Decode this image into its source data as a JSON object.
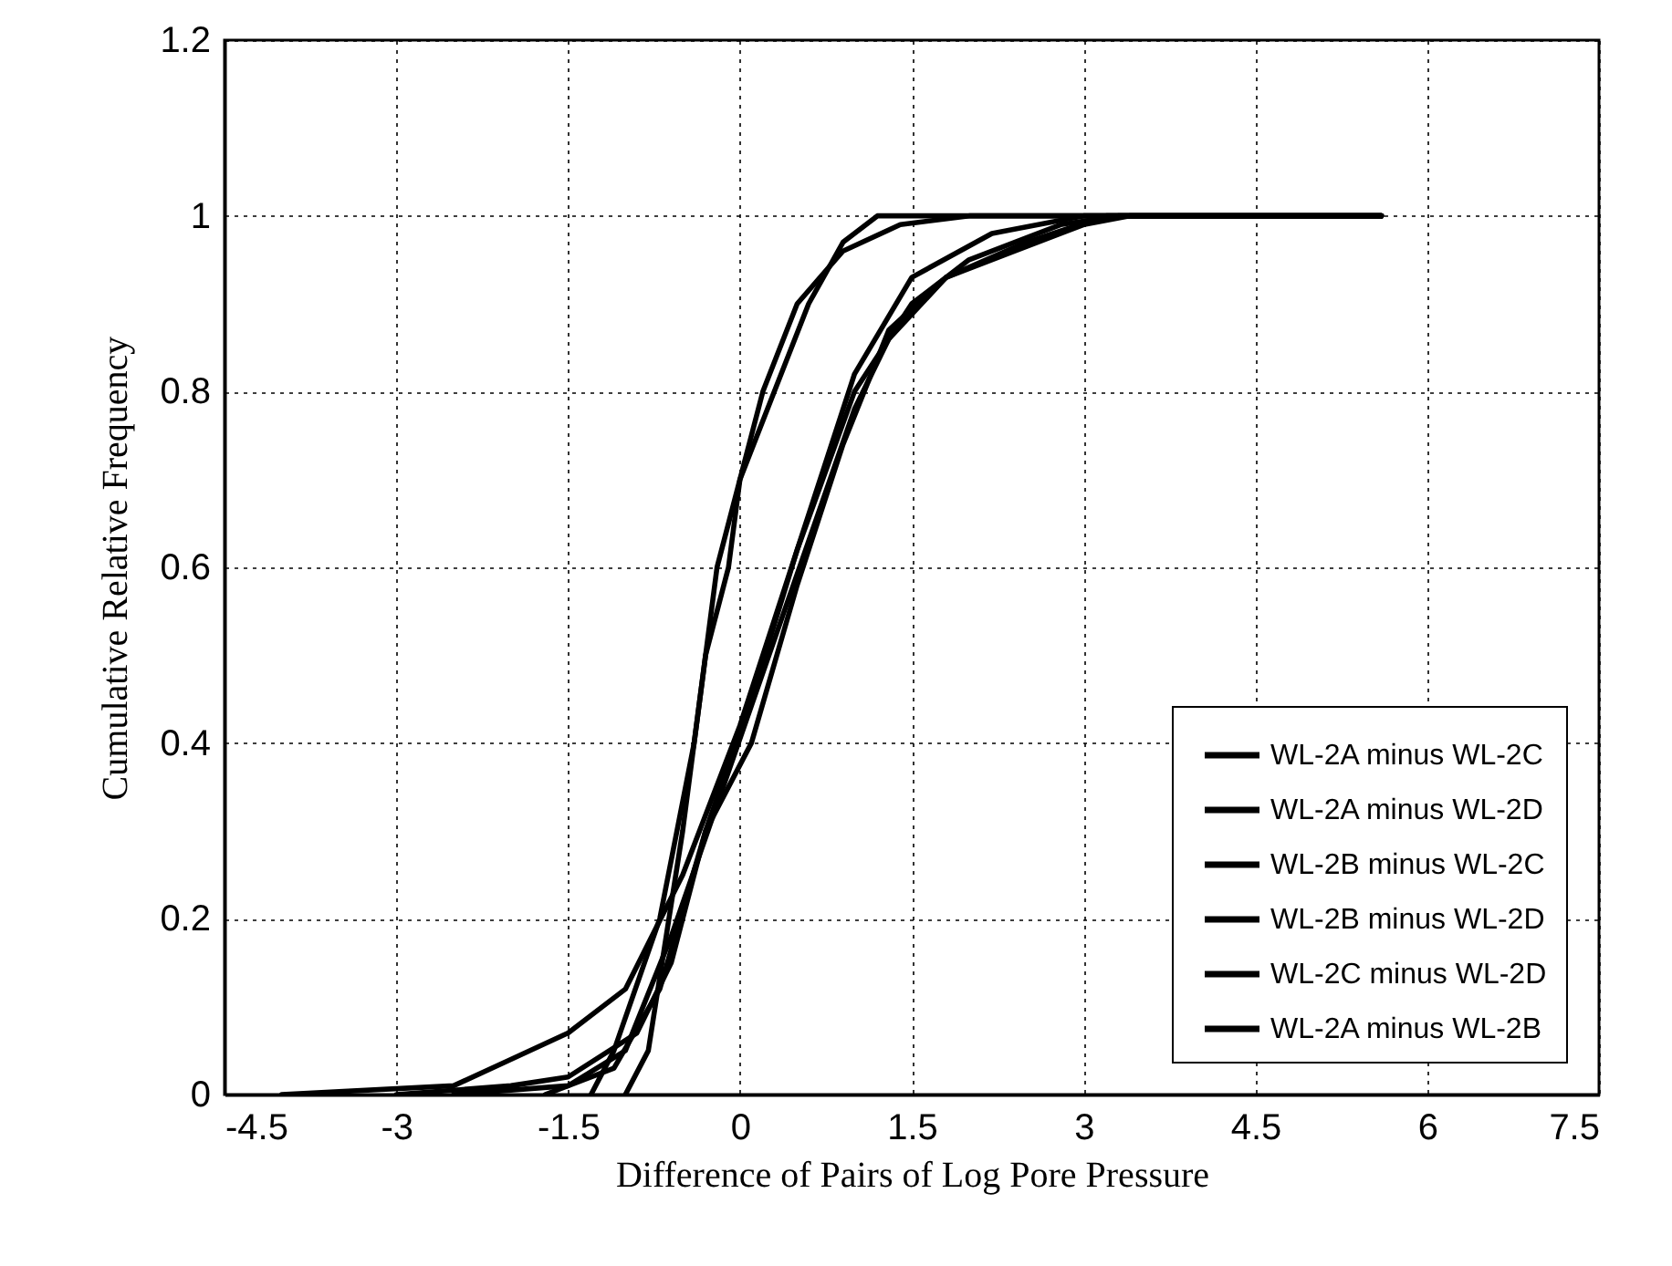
{
  "chart_data": {
    "type": "line",
    "xlabel": "Difference of Pairs of Log Pore Pressure",
    "ylabel": "Cumulative Relative Frequency",
    "xlim": [
      -4.5,
      7.5
    ],
    "xticks": [
      -4.5,
      -3,
      -1.5,
      0,
      1.5,
      3,
      4.5,
      6,
      7.5
    ],
    "ylim": [
      0,
      1.2
    ],
    "yticks": [
      0,
      0.2,
      0.4,
      0.6,
      0.8,
      1,
      1.2
    ],
    "grid": true,
    "legend": "bottom right",
    "marker": "none",
    "line_style": "solid",
    "series": [
      {
        "name": "WL-2A minus WL-2C",
        "color": "#000000",
        "x": [
          -4,
          -2.5,
          -2.0,
          -1.5,
          -1.0,
          -0.5,
          0,
          0.5,
          1.0,
          1.5,
          2.2,
          3,
          5.6
        ],
        "values": [
          0,
          0.01,
          0.04,
          0.07,
          0.12,
          0.25,
          0.42,
          0.62,
          0.82,
          0.93,
          0.98,
          1.0,
          1.0
        ]
      },
      {
        "name": "WL-2A minus WL-2D",
        "color": "#000000",
        "x": [
          -3,
          -2.0,
          -1.5,
          -0.9,
          -0.6,
          -0.3,
          0.1,
          0.5,
          1,
          1.5,
          2,
          2.8,
          3.3,
          5.6
        ],
        "values": [
          0,
          0.01,
          0.02,
          0.07,
          0.15,
          0.3,
          0.45,
          0.62,
          0.8,
          0.9,
          0.95,
          0.99,
          1.0,
          1.0
        ]
      },
      {
        "name": "WL-2B minus WL-2C",
        "color": "#000000",
        "x": [
          -1.3,
          -1.1,
          -0.7,
          -0.4,
          -0.2,
          0.2,
          0.5,
          0.9,
          1.4,
          2,
          5.6
        ],
        "values": [
          0,
          0.05,
          0.2,
          0.4,
          0.6,
          0.8,
          0.9,
          0.96,
          0.99,
          1,
          1
        ]
      },
      {
        "name": "WL-2B minus WL-2D",
        "color": "#000000",
        "x": [
          -2.5,
          -1.5,
          -1.0,
          -0.6,
          -0.2,
          0.2,
          0.6,
          1,
          1.3,
          1.8,
          2.5,
          3.2,
          5.6
        ],
        "values": [
          0,
          0.01,
          0.05,
          0.18,
          0.33,
          0.48,
          0.63,
          0.78,
          0.86,
          0.93,
          0.97,
          1.0,
          1.0
        ]
      },
      {
        "name": "WL-2C minus WL-2D",
        "color": "#000000",
        "x": [
          -1.0,
          -0.8,
          -0.5,
          -0.3,
          -0.1,
          0,
          0.3,
          0.6,
          0.9,
          1.2,
          5.6
        ],
        "values": [
          0,
          0.05,
          0.3,
          0.5,
          0.6,
          0.7,
          0.8,
          0.9,
          0.97,
          1.0,
          1.0
        ]
      },
      {
        "name": "WL-2A minus WL-2B",
        "color": "#000000",
        "x": [
          -1.7,
          -1.1,
          -0.7,
          -0.3,
          0.1,
          0.5,
          0.9,
          1.3,
          1.8,
          2.4,
          3,
          3.4,
          5.6
        ],
        "values": [
          0,
          0.03,
          0.12,
          0.3,
          0.4,
          0.58,
          0.74,
          0.87,
          0.93,
          0.96,
          0.99,
          1.0,
          1.0
        ]
      }
    ]
  }
}
